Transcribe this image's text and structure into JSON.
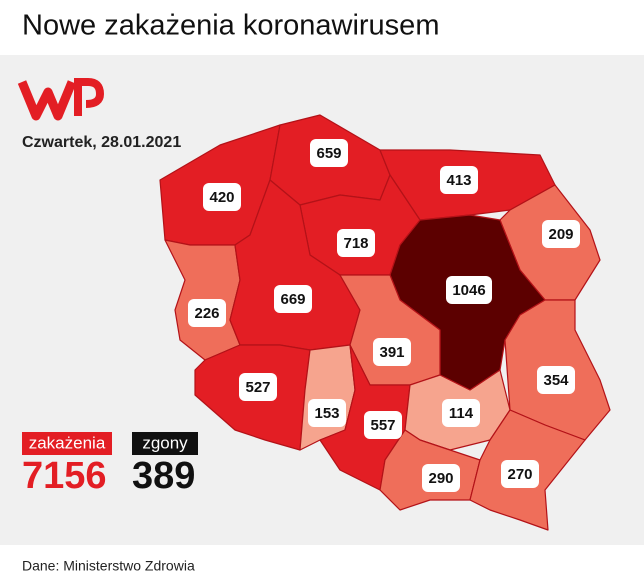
{
  "header": {
    "title": "Nowe zakażenia koronawirusem",
    "date": "Czwartek, 28.01.2021"
  },
  "regions": [
    {
      "value": 420
    },
    {
      "value": 659
    },
    {
      "value": 413
    },
    {
      "value": 209
    },
    {
      "value": 718
    },
    {
      "value": 1046
    },
    {
      "value": 226
    },
    {
      "value": 669
    },
    {
      "value": 391
    },
    {
      "value": 354
    },
    {
      "value": 527
    },
    {
      "value": 153
    },
    {
      "value": 557
    },
    {
      "value": 114
    },
    {
      "value": 290
    },
    {
      "value": 270
    }
  ],
  "summary": {
    "cases_label": "zakażenia",
    "cases": 7156,
    "deaths_label": "zgony",
    "deaths": 389
  },
  "footer": {
    "source": "Dane: Ministerstwo Zdrowia"
  }
}
